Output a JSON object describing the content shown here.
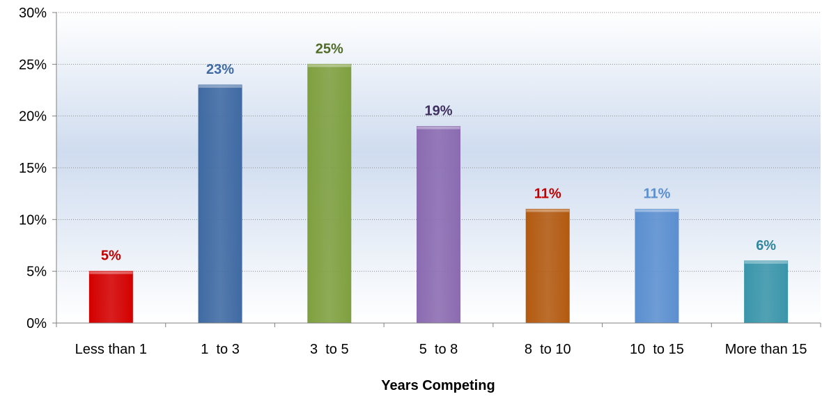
{
  "chart_data": {
    "type": "bar",
    "title": "",
    "xlabel": "Years Competing",
    "ylabel": "",
    "categories": [
      "Less than 1",
      "1  to 3",
      "3  to 5",
      "5  to 8",
      "8  to 10",
      "10  to 15",
      "More than 15"
    ],
    "values": [
      5,
      23,
      25,
      19,
      11,
      11,
      6
    ],
    "value_labels": [
      "5%",
      "23%",
      "25%",
      "19%",
      "11%",
      "11%",
      "6%"
    ],
    "y_ticks": [
      "0%",
      "5%",
      "10%",
      "15%",
      "20%",
      "25%",
      "30%"
    ],
    "ylim": [
      0,
      30
    ],
    "grid": true,
    "legend": "none",
    "bar_colors": [
      "#d40000",
      "#3f6aa3",
      "#7fa03f",
      "#8b6bb1",
      "#b35a10",
      "#5b8fd0",
      "#3a95aa"
    ],
    "label_colors": [
      "#c00000",
      "#3f6aa3",
      "#4f6b28",
      "#3d2f5e",
      "#c00000",
      "#5b8fd0",
      "#31859c"
    ]
  }
}
